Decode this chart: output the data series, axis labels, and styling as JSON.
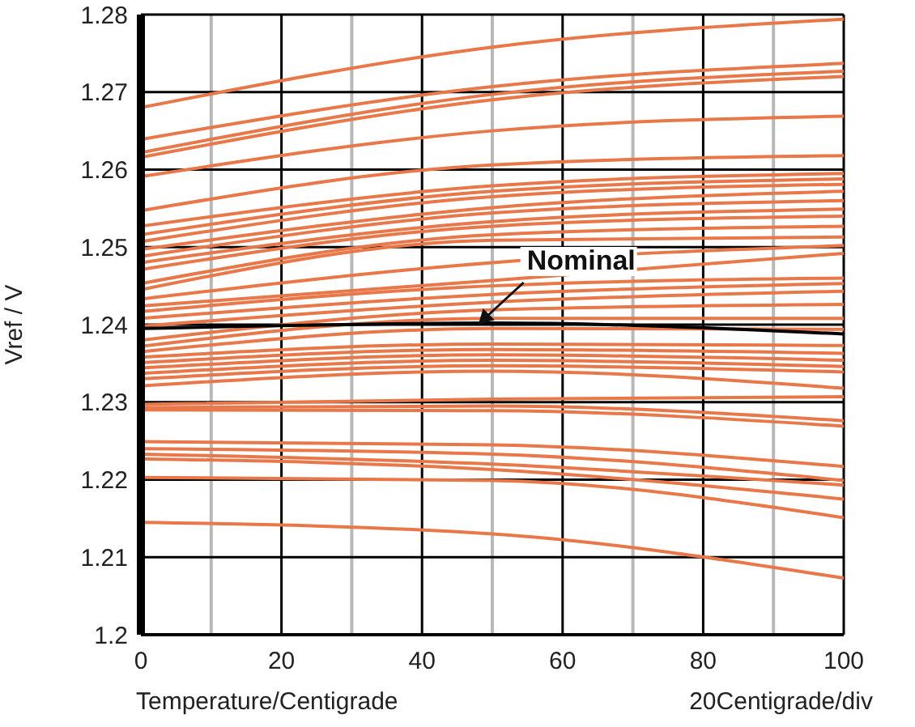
{
  "chart_data": {
    "type": "line",
    "xlabel": "Temperature/Centigrade",
    "ylabel": "Vref / V",
    "annotations": [
      {
        "text": "Nominal",
        "x": 48,
        "y": 1.24
      },
      "20Centigrade/div"
    ],
    "x": [
      0,
      50,
      100
    ],
    "xlim": [
      0,
      100
    ],
    "xticks": [
      0,
      {
        "value": 10,
        "label": null
      },
      20,
      {
        "value": 30,
        "label": null
      },
      40,
      {
        "value": 50,
        "label": null
      },
      60,
      {
        "value": 70,
        "label": null
      },
      80,
      {
        "value": 90,
        "label": null
      },
      100
    ],
    "ylim": [
      1.2,
      1.28
    ],
    "yticks": [
      1.2,
      1.21,
      1.22,
      1.23,
      1.24,
      1.25,
      1.26,
      1.27,
      1.28
    ],
    "grid": true,
    "marker": "none",
    "line_style": "solid",
    "series": [
      {
        "color": "#e8784a",
        "values": [
          1.268,
          1.2758,
          1.2794
        ]
      },
      {
        "color": "#e8784a",
        "values": [
          1.2639,
          1.2707,
          1.2737
        ]
      },
      {
        "color": "#e8784a",
        "values": [
          1.2622,
          1.2697,
          1.2727
        ]
      },
      {
        "color": "#e8784a",
        "values": [
          1.2616,
          1.269,
          1.272
        ]
      },
      {
        "color": "#e8784a",
        "values": [
          1.2591,
          1.265,
          1.2669
        ]
      },
      {
        "color": "#e8784a",
        "values": [
          1.2547,
          1.2606,
          1.2618
        ]
      },
      {
        "color": "#e8784a",
        "values": [
          1.2527,
          1.2579,
          1.2595
        ]
      },
      {
        "color": "#e8784a",
        "values": [
          1.2516,
          1.2572,
          1.2588
        ]
      },
      {
        "color": "#e8784a",
        "values": [
          1.2507,
          1.2565,
          1.2581
        ]
      },
      {
        "color": "#e8784a",
        "values": [
          1.2497,
          1.2551,
          1.2572
        ]
      },
      {
        "color": "#e8784a",
        "values": [
          1.2488,
          1.2544,
          1.256
        ]
      },
      {
        "color": "#e8784a",
        "values": [
          1.248,
          1.2533,
          1.2549
        ]
      },
      {
        "color": "#e8784a",
        "values": [
          1.2471,
          1.2527,
          1.254
        ]
      },
      {
        "color": "#e8784a",
        "values": [
          1.2453,
          1.2516,
          1.2527
        ]
      },
      {
        "color": "#e8784a",
        "values": [
          1.2445,
          1.2509,
          1.2513
        ]
      },
      {
        "color": "#e8784a",
        "values": [
          1.2433,
          1.248,
          1.2502
        ]
      },
      {
        "color": "#e8784a",
        "values": [
          1.2424,
          1.2457,
          1.2492
        ]
      },
      {
        "color": "#e8784a",
        "values": [
          1.2417,
          1.245,
          1.246
        ]
      },
      {
        "color": "#e8784a",
        "values": [
          1.2408,
          1.2439,
          1.2453
        ]
      },
      {
        "color": "#e8784a",
        "values": [
          1.2398,
          1.2429,
          1.2443
        ]
      },
      {
        "color": "#e8784a",
        "values": [
          1.238,
          1.2419,
          1.2426
        ]
      },
      {
        "color": "#e8784a",
        "values": [
          1.2372,
          1.2408,
          1.2408
        ]
      },
      {
        "color": "#e8784a",
        "values": [
          1.2365,
          1.2395,
          1.2394
        ]
      },
      {
        "color": "#e8784a",
        "values": [
          1.2358,
          1.2375,
          1.2373
        ]
      },
      {
        "color": "#e8784a",
        "values": [
          1.2351,
          1.2368,
          1.2363
        ]
      },
      {
        "color": "#e8784a",
        "values": [
          1.2344,
          1.2361,
          1.2354
        ]
      },
      {
        "color": "#e8784a",
        "values": [
          1.2337,
          1.2354,
          1.2346
        ]
      },
      {
        "color": "#e8784a",
        "values": [
          1.233,
          1.2347,
          1.2339
        ]
      },
      {
        "color": "#e8784a",
        "values": [
          1.2321,
          1.234,
          1.2318
        ]
      },
      {
        "color": "#e8784a",
        "values": [
          1.2297,
          1.2304,
          1.2307
        ]
      },
      {
        "color": "#e8784a",
        "values": [
          1.2293,
          1.2295,
          1.2276
        ]
      },
      {
        "color": "#e8784a",
        "values": [
          1.229,
          1.2289,
          1.2269
        ]
      },
      {
        "color": "#e8784a",
        "values": [
          1.2249,
          1.2245,
          1.2217
        ]
      },
      {
        "color": "#e8784a",
        "values": [
          1.224,
          1.2233,
          1.2199
        ]
      },
      {
        "color": "#e8784a",
        "values": [
          1.2233,
          1.222,
          1.2193
        ]
      },
      {
        "color": "#e8784a",
        "values": [
          1.2227,
          1.2213,
          1.2175
        ]
      },
      {
        "color": "#e8784a",
        "values": [
          1.2203,
          1.2199,
          1.2151
        ]
      },
      {
        "color": "#e8784a",
        "values": [
          1.2145,
          1.213,
          1.2073
        ]
      },
      {
        "color": "#000000",
        "values": [
          1.2395,
          1.2402,
          1.2388
        ]
      }
    ]
  }
}
